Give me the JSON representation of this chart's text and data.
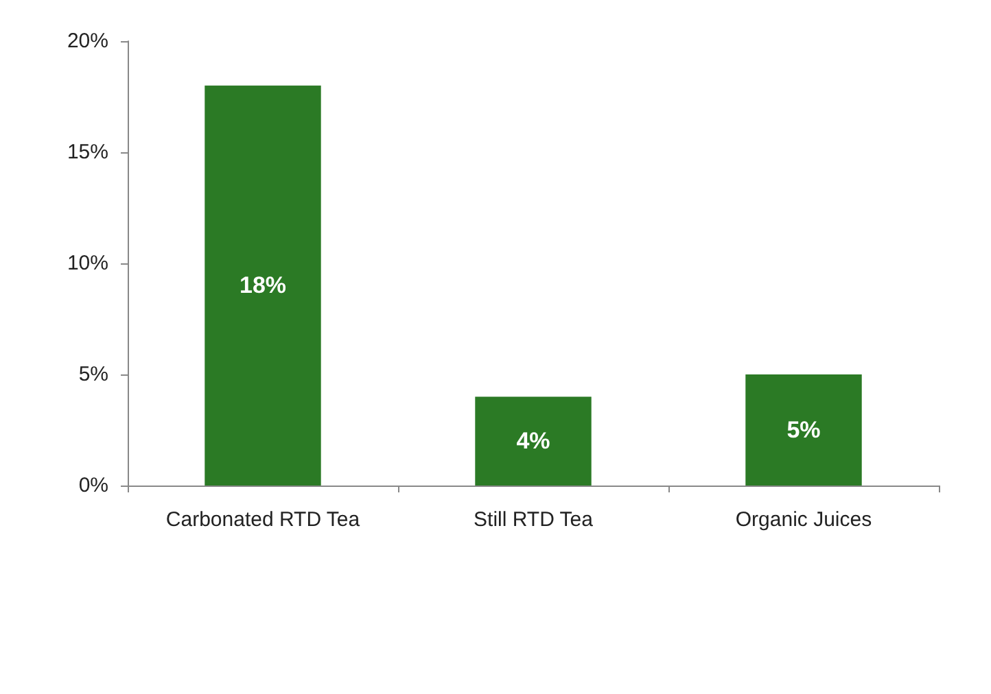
{
  "chart_data": {
    "type": "bar",
    "categories": [
      "Carbonated RTD Tea",
      "Still RTD Tea",
      "Organic Juices"
    ],
    "values": [
      18,
      4,
      5
    ],
    "value_labels": [
      "18%",
      "4%",
      "5%"
    ],
    "color": "#2b7a25",
    "ylim": [
      0,
      20
    ],
    "yticks": [
      {
        "value": 0,
        "label": "0%"
      },
      {
        "value": 5,
        "label": "5%"
      },
      {
        "value": 10,
        "label": "10%"
      },
      {
        "value": 15,
        "label": "15%"
      },
      {
        "value": 20,
        "label": "20%"
      }
    ],
    "grid": false
  }
}
